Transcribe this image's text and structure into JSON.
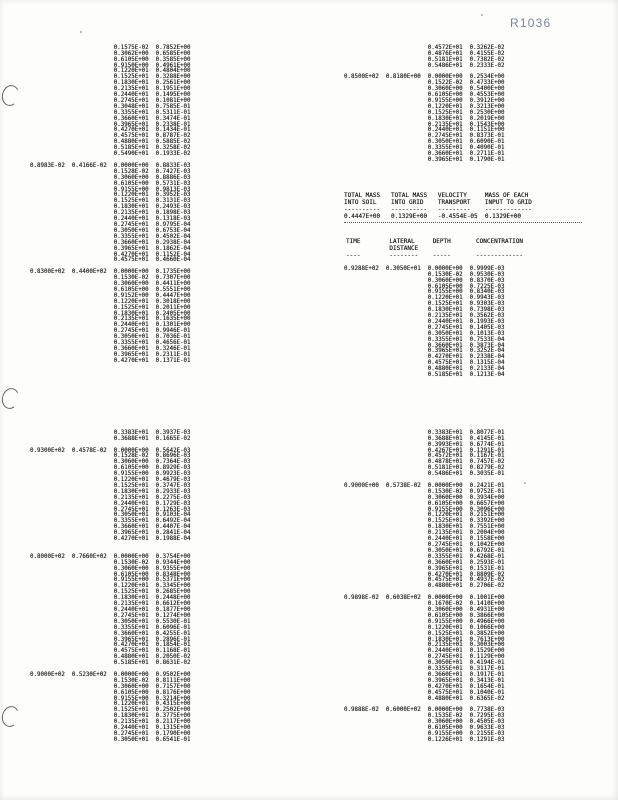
{
  "page_label": "R1036",
  "ink_color": "#1d1d1d",
  "stamp_color": "#7c8797",
  "summary_table": {
    "columns": [
      {
        "line1": "TOTAL MASS",
        "line2": "INTO SOIL"
      },
      {
        "line1": "TOTAL MASS",
        "line2": "INTO GRID"
      },
      {
        "line1": "VELOCITY",
        "line2": "TRANSPORT"
      },
      {
        "line1": "MASS OF EACH",
        "line2": "INPUT TO GRID"
      }
    ],
    "values": [
      "0.4447E+00",
      "0.1329E+00",
      "-0.4554E-05",
      "0.1329E+00"
    ]
  },
  "profile_table": {
    "columns": [
      {
        "line1": "TIME",
        "line2": ""
      },
      {
        "line1": "LATERAL",
        "line2": "DISTANCE"
      },
      {
        "line1": "DEPTH",
        "line2": ""
      },
      {
        "line1": "CONCENTRATION",
        "line2": ""
      }
    ]
  },
  "groups": {
    "top_left": {
      "blocks": [
        {
          "lead": null,
          "rows": [
            [
              "0.1575E-02",
              "0.7852E+00"
            ],
            [
              "0.3062E+00",
              "0.6585E+00"
            ],
            [
              "0.6105E+00",
              "0.3585E+00"
            ],
            [
              "0.9150E+00",
              "0.4961E+00"
            ],
            [
              "0.1220E+01",
              "0.4804E+00"
            ],
            [
              "0.1525E+01",
              "0.3288E+00"
            ],
            [
              "0.1830E+01",
              "0.2561E+00"
            ],
            [
              "0.2135E+01",
              "0.1951E+00"
            ],
            [
              "0.2440E+01",
              "0.1495E+00"
            ],
            [
              "0.2745E+01",
              "0.1081E+00"
            ],
            [
              "0.3048E+01",
              "0.7585E-01"
            ],
            [
              "0.3355E+01",
              "0.5311E-01"
            ],
            [
              "0.3660E+01",
              "0.3474E-01"
            ],
            [
              "0.3965E+01",
              "0.2338E-01"
            ],
            [
              "0.4270E+01",
              "0.1434E-01"
            ],
            [
              "0.4575E+01",
              "0.8787E-02"
            ],
            [
              "0.4880E+01",
              "0.5885E-02"
            ],
            [
              "0.5185E+01",
              "0.3258E-02"
            ],
            [
              "0.5490E+01",
              "0.1933E-02"
            ]
          ]
        },
        {
          "gap": 1,
          "lead": [
            "0.8983E-02",
            "0.4166E-02"
          ],
          "rows": [
            [
              "0.0000E+00",
              "0.8833E-03"
            ],
            [
              "0.1528E-02",
              "0.7427E-03"
            ],
            [
              "0.3060E+00",
              "0.8886E-03"
            ],
            [
              "0.6105E+00",
              "0.5731E-03"
            ],
            [
              "0.9155E+00",
              "0.9813E-03"
            ],
            [
              "0.1220E+01",
              "0.3952E-03"
            ],
            [
              "0.1525E+01",
              "0.3131E-03"
            ],
            [
              "0.1830E+01",
              "0.2493E-03"
            ],
            [
              "0.2135E+01",
              "0.1898E-03"
            ],
            [
              "0.2440E+01",
              "0.1318E-03"
            ],
            [
              "0.2745E+01",
              "0.9795E-04"
            ],
            [
              "0.3050E+01",
              "0.6753E-04"
            ],
            [
              "0.3355E+01",
              "0.4502E-04"
            ],
            [
              "0.3660E+01",
              "0.2938E-04"
            ],
            [
              "0.3965E+01",
              "0.1862E-04"
            ],
            [
              "0.4270E+01",
              "0.1152E-04"
            ],
            [
              "0.4575E+01",
              "0.4660E-04"
            ]
          ]
        },
        {
          "gap": 1,
          "lead": [
            "0.8300E+02",
            "0.4400E+02"
          ],
          "rows": [
            [
              "0.0000E+00",
              "0.1735E+00"
            ],
            [
              "0.1530E-02",
              "0.7307E+00"
            ],
            [
              "0.3060E+00",
              "0.4411E+00"
            ],
            [
              "0.6105E+00",
              "0.5551E+00"
            ],
            [
              "0.9152E+00",
              "0.4447E+00"
            ],
            [
              "0.1220E+01",
              "0.3018E+00"
            ],
            [
              "0.1525E+01",
              "0.2011E+00"
            ],
            [
              "0.1830E+01",
              "0.2405E+00"
            ],
            [
              "0.2135E+01",
              "0.1635E+00"
            ],
            [
              "0.2440E+01",
              "0.1301E+00"
            ],
            [
              "0.2745E+01",
              "0.9946E-01"
            ],
            [
              "0.3050E+01",
              "0.7036E-01"
            ],
            [
              "0.3355E+01",
              "0.4656E-01"
            ],
            [
              "0.3660E+01",
              "0.3246E-01"
            ],
            [
              "0.3965E+01",
              "0.2311E-01"
            ],
            [
              "0.4270E+01",
              "0.1371E-01"
            ]
          ]
        }
      ]
    },
    "top_right": {
      "blocks": [
        {
          "lead": null,
          "rows": [
            [
              "0.4572E+01",
              "0.3262E-02"
            ],
            [
              "0.4876E+01",
              "0.4155E-02"
            ],
            [
              "0.5181E+01",
              "0.7382E-02"
            ],
            [
              "0.5486E+01",
              "0.2333E-02"
            ]
          ]
        },
        {
          "gap": 1,
          "lead": [
            "0.8500E+02",
            "0.8180E+00"
          ],
          "rows": [
            [
              "0.0000E+00",
              "0.2534E+00"
            ],
            [
              "0.1522E-02",
              "0.4733E+00"
            ],
            [
              "0.3060E+00",
              "0.5400E+00"
            ],
            [
              "0.6105E+00",
              "0.4553E+00"
            ],
            [
              "0.9155E+00",
              "0.3912E+00"
            ],
            [
              "0.1220E+01",
              "0.3213E+00"
            ],
            [
              "0.1525E+01",
              "0.2530E+00"
            ],
            [
              "0.1830E+01",
              "0.2019E+00"
            ],
            [
              "0.2135E+01",
              "0.1543E+00"
            ],
            [
              "0.2440E+01",
              "0.1151E+00"
            ],
            [
              "0.2745E+01",
              "0.8373E-01"
            ],
            [
              "0.3050E+01",
              "0.6090E-01"
            ],
            [
              "0.3355E+01",
              "0.4090E-01"
            ],
            [
              "0.3660E+01",
              "0.2711E-01"
            ],
            [
              "0.3965E+01",
              "0.1790E-01"
            ]
          ]
        }
      ]
    },
    "mid_right": {
      "blocks": [
        {
          "lead": [
            "0.9288E+02",
            "0.3050E+01"
          ],
          "rows": [
            [
              "0.0000E+00",
              "0.9999E-03"
            ],
            [
              "0.1530E-02",
              "0.9530E-03"
            ],
            [
              "0.3060E+00",
              "0.8370E-03"
            ],
            [
              "0.6105E+00",
              "0.7225E-03"
            ],
            [
              "0.9155E+00",
              "0.8340E-03"
            ],
            [
              "0.1220E+01",
              "0.9943E-03"
            ],
            [
              "0.1525E+01",
              "0.9303E-03"
            ],
            [
              "0.1830E+01",
              "0.7398E-03"
            ],
            [
              "0.2135E+01",
              "0.3562E-03"
            ],
            [
              "0.2440E+01",
              "0.1993E-03"
            ],
            [
              "0.2745E+01",
              "0.1405E-03"
            ],
            [
              "0.3050E+01",
              "0.1013E-03"
            ],
            [
              "0.3355E+01",
              "0.7533E-04"
            ],
            [
              "0.3660E+01",
              "0.3873E-04"
            ],
            [
              "0.3965E+01",
              "0.3252E-04"
            ],
            [
              "0.4270E+01",
              "0.2338E-04"
            ],
            [
              "0.4575E+01",
              "0.1315E-04"
            ],
            [
              "0.4880E+01",
              "0.2133E-04"
            ],
            [
              "0.5185E+01",
              "0.1213E-04"
            ]
          ]
        }
      ]
    },
    "bottom_left": {
      "blocks": [
        {
          "lead": null,
          "rows": [
            [
              "0.3383E+01",
              "0.3937E-03"
            ],
            [
              "0.3688E+01",
              "0.1665E-02"
            ]
          ]
        },
        {
          "gap": 1,
          "lead": [
            "0.9300E+02",
            "0.4578E-02"
          ],
          "rows": [
            [
              "0.0000E+00",
              "0.5642E-03"
            ],
            [
              "0.1528E-02",
              "0.8696E-03"
            ],
            [
              "0.3060E+00",
              "0.7364E-03"
            ],
            [
              "0.6105E+00",
              "0.8929E-03"
            ],
            [
              "0.9155E+00",
              "0.9923E-03"
            ],
            [
              "0.1220E+01",
              "0.4679E-03"
            ],
            [
              "0.1525E+01",
              "0.3747E-03"
            ],
            [
              "0.1830E+01",
              "0.2933E-03"
            ],
            [
              "0.2135E+01",
              "0.2275E-03"
            ],
            [
              "0.2440E+01",
              "0.1729E-03"
            ],
            [
              "0.2745E+01",
              "0.1263E-03"
            ],
            [
              "0.3050E+01",
              "0.9103E-04"
            ],
            [
              "0.3355E+01",
              "0.6492E-04"
            ],
            [
              "0.3660E+01",
              "0.4407E-04"
            ],
            [
              "0.3965E+01",
              "0.2841E-04"
            ],
            [
              "0.4270E+01",
              "0.1988E-04"
            ]
          ]
        },
        {
          "gap": 2,
          "lead": [
            "0.8000E+02",
            "0.7660E+02"
          ],
          "rows": [
            [
              "0.0000E+00",
              "0.3754E+00"
            ],
            [
              "0.1530E-02",
              "0.9344E+00"
            ],
            [
              "0.3060E+00",
              "0.9355E+00"
            ],
            [
              "0.6105E+00",
              "0.8348E+00"
            ],
            [
              "0.9155E+00",
              "0.5371E+00"
            ],
            [
              "0.1220E+01",
              "0.3345E+00"
            ],
            [
              "0.1525E+01",
              "0.2685E+00"
            ],
            [
              "0.1830E+01",
              "0.2448E+00"
            ],
            [
              "0.2135E+01",
              "0.6612E+00"
            ],
            [
              "0.2440E+01",
              "0.1877E+00"
            ],
            [
              "0.2745E+01",
              "0.1274E+00"
            ],
            [
              "0.3050E+01",
              "0.5530E-01"
            ],
            [
              "0.3355E+01",
              "0.6096E-01"
            ],
            [
              "0.3660E+01",
              "0.4255E-01"
            ],
            [
              "0.3965E+01",
              "0.2896E-01"
            ],
            [
              "0.4270E+01",
              "0.1854E-01"
            ],
            [
              "0.4575E+01",
              "0.1168E-01"
            ],
            [
              "0.4880E+01",
              "0.2050E-02"
            ],
            [
              "0.5185E+01",
              "0.8631E-02"
            ]
          ]
        },
        {
          "gap": 1,
          "lead": [
            "0.9000E+02",
            "0.5230E+02"
          ],
          "rows": [
            [
              "0.0000E+00",
              "0.9502E+00"
            ],
            [
              "0.1530E-02",
              "0.8111E+00"
            ],
            [
              "0.3060E+00",
              "0.7157E+00"
            ],
            [
              "0.6105E+00",
              "0.8176E+00"
            ],
            [
              "0.9155E+00",
              "0.3214E+00"
            ],
            [
              "0.1220E+01",
              "0.4315E+00"
            ],
            [
              "0.1525E+01",
              "0.2502E+00"
            ],
            [
              "0.1830E+01",
              "0.3775E+00"
            ],
            [
              "0.2135E+01",
              "0.2117E+00"
            ],
            [
              "0.2440E+01",
              "0.1315E+00"
            ],
            [
              "0.2745E+01",
              "0.1790E+00"
            ],
            [
              "0.3050E+01",
              "0.6541E-01"
            ]
          ]
        }
      ]
    },
    "bottom_right": {
      "blocks": [
        {
          "lead": null,
          "rows": [
            [
              "0.3383E+01",
              "0.8077E-01"
            ],
            [
              "0.3688E+01",
              "0.4145E-01"
            ],
            [
              "0.3993E+01",
              "0.6774E-01"
            ],
            [
              "0.4267E+01",
              "0.1291E-01"
            ],
            [
              "0.4572E+01",
              "0.1167E-01"
            ],
            [
              "0.4878E+01",
              "0.7457E-02"
            ],
            [
              "0.5181E+01",
              "0.8279E-02"
            ],
            [
              "0.5486E+01",
              "0.3035E-01"
            ]
          ]
        },
        {
          "gap": 1,
          "lead": [
            "0.9000E+00",
            "0.5738E-02"
          ],
          "rows": [
            [
              "0.0000E+00",
              "0.2421E-01"
            ],
            [
              "0.1530E-02",
              "0.9752E-01"
            ],
            [
              "0.3060E+00",
              "0.3934E+00"
            ],
            [
              "0.6105E+00",
              "0.6657E+00"
            ],
            [
              "0.9155E+00",
              "0.3096E+00"
            ],
            [
              "0.1220E+01",
              "0.2151E+00"
            ],
            [
              "0.1525E+01",
              "0.3392E+00"
            ],
            [
              "0.1830E+01",
              "0.7551E+00"
            ],
            [
              "0.2135E+01",
              "0.2004E+00"
            ],
            [
              "0.2440E+01",
              "0.1558E+00"
            ],
            [
              "0.2745E+01",
              "0.1042E+00"
            ],
            [
              "0.3050E+01",
              "0.6792E-01"
            ],
            [
              "0.3355E+01",
              "0.4268E-01"
            ],
            [
              "0.3660E+01",
              "0.2593E-01"
            ],
            [
              "0.3965E+01",
              "0.1531E-01"
            ],
            [
              "0.4270E+01",
              "0.8809E-02"
            ],
            [
              "0.4575E+01",
              "0.4937E-02"
            ],
            [
              "0.4880E+01",
              "0.2706E-02"
            ]
          ]
        },
        {
          "gap": 1,
          "lead": [
            "0.9898E-02",
            "0.6038E+02"
          ],
          "rows": [
            [
              "0.0000E+00",
              "0.1001E+00"
            ],
            [
              "0.1670E-02",
              "0.1410E+00"
            ],
            [
              "0.3060E+00",
              "0.4931E+00"
            ],
            [
              "0.6105E+00",
              "0.3866E+00"
            ],
            [
              "0.9155E+00",
              "0.4966E+00"
            ],
            [
              "0.1220E+01",
              "0.1066E+00"
            ],
            [
              "0.1525E+01",
              "0.3852E+00"
            ],
            [
              "0.1830E+01",
              "0.7613E+00"
            ],
            [
              "0.2135E+01",
              "0.3003E+00"
            ],
            [
              "0.2440E+01",
              "0.1529E+00"
            ],
            [
              "0.2745E+01",
              "0.1129E+00"
            ],
            [
              "0.3050E+01",
              "0.4194E-01"
            ],
            [
              "0.3355E+01",
              "0.3117E-01"
            ],
            [
              "0.3660E+01",
              "0.1917E-01"
            ],
            [
              "0.3965E+01",
              "0.3413E-01"
            ],
            [
              "0.4270E+01",
              "0.1654E-01"
            ],
            [
              "0.4575E+01",
              "0.1040E-01"
            ],
            [
              "0.4880E+01",
              "0.6365E-02"
            ]
          ]
        },
        {
          "gap": 1,
          "lead": [
            "0.9888E-02",
            "0.6000E+02"
          ],
          "rows": [
            [
              "0.0000E+00",
              "0.7738E-03"
            ],
            [
              "0.1535E-02",
              "0.7295E-03"
            ],
            [
              "0.3060E+00",
              "0.4505E-03"
            ],
            [
              "0.6105E+00",
              "0.9633E-03"
            ],
            [
              "0.9155E+00",
              "0.2155E-03"
            ],
            [
              "0.1226E+01",
              "0.1291E-03"
            ]
          ]
        }
      ]
    }
  }
}
